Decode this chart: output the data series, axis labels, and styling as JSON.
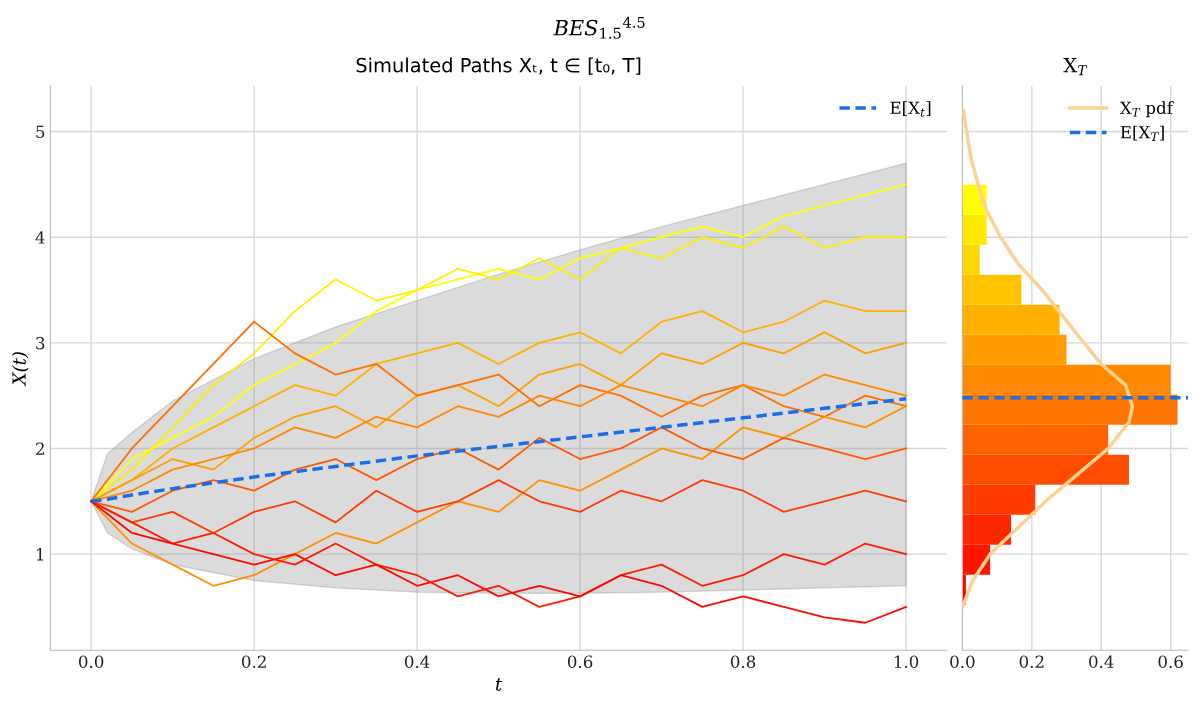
{
  "chart_data": [
    {
      "type": "line",
      "title": "BES$_{1.5}$$^{4.5}$",
      "subtitle": "Simulated Paths Xₜ, t ∈ [t₀, T]",
      "xlabel": "t",
      "ylabel": "X(t)",
      "x": [
        0,
        0.05,
        0.1,
        0.15,
        0.2,
        0.25,
        0.3,
        0.35,
        0.4,
        0.45,
        0.5,
        0.55,
        0.6,
        0.65,
        0.7,
        0.75,
        0.8,
        0.85,
        0.9,
        0.95,
        1.0
      ],
      "series": [
        {
          "color": "#ffff00",
          "values": [
            1.5,
            1.9,
            2.1,
            2.3,
            2.6,
            2.8,
            3.0,
            3.3,
            3.5,
            3.6,
            3.7,
            3.6,
            3.8,
            3.9,
            4.0,
            4.1,
            4.0,
            4.2,
            4.3,
            4.4,
            4.5
          ]
        },
        {
          "color": "#ffee00",
          "values": [
            1.5,
            1.8,
            2.2,
            2.6,
            2.9,
            3.3,
            3.6,
            3.4,
            3.5,
            3.7,
            3.6,
            3.8,
            3.6,
            3.9,
            3.8,
            4.0,
            3.9,
            4.1,
            3.9,
            4.0,
            4.0
          ]
        },
        {
          "color": "#ffb000",
          "values": [
            1.5,
            1.7,
            2.0,
            2.2,
            2.4,
            2.6,
            2.5,
            2.8,
            2.9,
            3.0,
            2.8,
            3.0,
            3.1,
            2.9,
            3.2,
            3.3,
            3.1,
            3.2,
            3.4,
            3.3,
            3.3
          ]
        },
        {
          "color": "#ffa000",
          "values": [
            1.5,
            1.7,
            1.9,
            1.8,
            2.1,
            2.3,
            2.4,
            2.2,
            2.5,
            2.6,
            2.4,
            2.7,
            2.8,
            2.6,
            2.9,
            2.8,
            3.0,
            2.9,
            3.1,
            2.9,
            3.0
          ]
        },
        {
          "color": "#ff7000",
          "values": [
            1.5,
            2.0,
            2.4,
            2.8,
            3.2,
            2.9,
            2.7,
            2.8,
            2.5,
            2.6,
            2.7,
            2.4,
            2.6,
            2.5,
            2.3,
            2.5,
            2.6,
            2.4,
            2.3,
            2.5,
            2.4
          ]
        },
        {
          "color": "#ff8800",
          "values": [
            1.5,
            1.6,
            1.8,
            1.9,
            2.0,
            2.2,
            2.1,
            2.3,
            2.2,
            2.4,
            2.3,
            2.5,
            2.4,
            2.6,
            2.5,
            2.4,
            2.6,
            2.5,
            2.7,
            2.6,
            2.5
          ]
        },
        {
          "color": "#ff9000",
          "values": [
            1.5,
            1.1,
            0.9,
            0.7,
            0.8,
            1.0,
            1.2,
            1.1,
            1.3,
            1.5,
            1.4,
            1.7,
            1.6,
            1.8,
            2.0,
            1.9,
            2.2,
            2.1,
            2.3,
            2.2,
            2.4
          ]
        },
        {
          "color": "#ff5a00",
          "values": [
            1.5,
            1.4,
            1.6,
            1.7,
            1.6,
            1.8,
            1.9,
            1.7,
            1.9,
            2.0,
            1.8,
            2.1,
            1.9,
            2.0,
            2.2,
            2.0,
            1.9,
            2.1,
            2.0,
            1.9,
            2.0
          ]
        },
        {
          "color": "#ff3c00",
          "values": [
            1.5,
            1.3,
            1.4,
            1.2,
            1.4,
            1.5,
            1.3,
            1.6,
            1.4,
            1.5,
            1.7,
            1.5,
            1.4,
            1.6,
            1.5,
            1.7,
            1.6,
            1.4,
            1.5,
            1.6,
            1.5
          ]
        },
        {
          "color": "#ff1e00",
          "values": [
            1.5,
            1.3,
            1.1,
            1.2,
            1.0,
            0.9,
            1.1,
            0.9,
            0.8,
            0.6,
            0.7,
            0.5,
            0.6,
            0.8,
            0.9,
            0.7,
            0.8,
            1.0,
            0.9,
            1.1,
            1.0
          ]
        },
        {
          "color": "#ff0a00",
          "values": [
            1.5,
            1.2,
            1.1,
            1.0,
            0.9,
            1.0,
            0.8,
            0.9,
            0.7,
            0.8,
            0.6,
            0.7,
            0.6,
            0.8,
            0.7,
            0.5,
            0.6,
            0.5,
            0.4,
            0.35,
            0.5
          ]
        },
        {
          "name": "E[X$_{t}$]",
          "color": "#1a6fe8",
          "line_style": "dashed",
          "x": [
            0,
            0.02,
            0.05,
            0.1,
            0.2,
            0.3,
            0.4,
            0.5,
            0.6,
            0.7,
            0.8,
            0.9,
            1.0
          ],
          "values": [
            1.5,
            1.52,
            1.56,
            1.62,
            1.73,
            1.83,
            1.93,
            2.02,
            2.11,
            2.2,
            2.29,
            2.38,
            2.47
          ],
          "lower": [
            1.5,
            1.2,
            1.05,
            0.9,
            0.75,
            0.68,
            0.64,
            0.63,
            0.63,
            0.64,
            0.66,
            0.68,
            0.7
          ],
          "upper": [
            1.5,
            1.95,
            2.15,
            2.45,
            2.85,
            3.15,
            3.4,
            3.65,
            3.88,
            4.1,
            4.3,
            4.5,
            4.7
          ]
        }
      ],
      "xlim": [
        -0.05,
        1.05
      ],
      "xticks": [
        {
          "value": 0,
          "label": "0.0"
        },
        {
          "value": 0.2,
          "label": "0.2"
        },
        {
          "value": 0.4,
          "label": "0.4"
        },
        {
          "value": 0.6,
          "label": "0.6"
        },
        {
          "value": 0.8,
          "label": "0.8"
        },
        {
          "value": 1.0,
          "label": "1.0"
        }
      ],
      "ylim": [
        0.09,
        5.43
      ],
      "yticks": [
        1,
        2,
        3,
        4,
        5
      ],
      "grid": true,
      "legend": "top right"
    },
    {
      "type": "histogram",
      "title": "X$_{T}$",
      "orientation": "horizontal",
      "bins": [
        0.52,
        0.804,
        1.088,
        1.372,
        1.656,
        1.94,
        2.224,
        2.508,
        2.792,
        3.076,
        3.36,
        3.644,
        3.928,
        4.212,
        4.496
      ],
      "values": [
        0.01,
        0.08,
        0.14,
        0.21,
        0.48,
        0.42,
        0.62,
        0.6,
        0.3,
        0.28,
        0.17,
        0.05,
        0.07,
        0.07
      ],
      "colors": [
        "#ff0000",
        "#ff1400",
        "#ff2700",
        "#ff3b00",
        "#ff4e00",
        "#ff6200",
        "#ff7600",
        "#ff8900",
        "#ff9d00",
        "#ffb100",
        "#ffc400",
        "#ffd800",
        "#ffeb00",
        "#ffff00"
      ],
      "series": [
        {
          "type": "line",
          "name": "X$_{T}$ pdf",
          "color": "#fcd192",
          "x": [
            0.5,
            0.75,
            1.0,
            1.25,
            1.5,
            1.75,
            2.0,
            2.25,
            2.4,
            2.6,
            2.8,
            3.0,
            3.25,
            3.5,
            3.75,
            4.0,
            4.25,
            4.5,
            4.75,
            5.0,
            5.2
          ],
          "values": [
            0.0,
            0.03,
            0.08,
            0.16,
            0.24,
            0.33,
            0.42,
            0.48,
            0.49,
            0.47,
            0.4,
            0.35,
            0.29,
            0.23,
            0.16,
            0.11,
            0.07,
            0.045,
            0.025,
            0.012,
            0.003
          ]
        }
      ],
      "ref_lines": [
        {
          "axis": "y",
          "value": 2.48,
          "label": "E[X$_{T}$]",
          "color": "#1a6fe8",
          "line_style": "dashed"
        }
      ],
      "xlim": [
        0,
        0.65
      ],
      "xticks": [
        {
          "value": 0,
          "label": "0.0"
        },
        {
          "value": 0.2,
          "label": "0.2"
        },
        {
          "value": 0.4,
          "label": "0.4"
        },
        {
          "value": 0.6,
          "label": "0.6"
        }
      ],
      "ylim": [
        0.09,
        5.43
      ],
      "yticks": [
        1,
        2,
        3,
        4,
        5
      ],
      "tick_labels": "x",
      "grid": true,
      "legend": "top right"
    }
  ]
}
